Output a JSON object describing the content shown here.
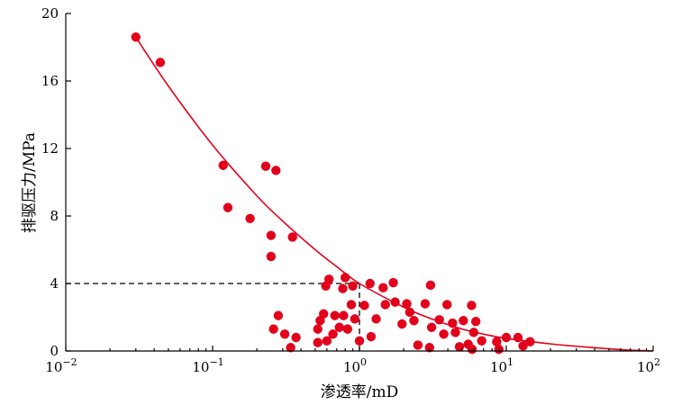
{
  "chart_data": {
    "type": "scatter",
    "xscale": "log",
    "xlim": [
      0.01,
      100
    ],
    "ylim": [
      0,
      20
    ],
    "xlabel": "渗透率/mD",
    "ylabel": "排驱压力/MPa",
    "x_tick_labels": [
      {
        "value": 0.01,
        "base": "10",
        "exp": "−2"
      },
      {
        "value": 0.1,
        "base": "10",
        "exp": "−1"
      },
      {
        "value": 1,
        "base": "10",
        "exp": "0"
      },
      {
        "value": 10,
        "base": "10",
        "exp": "1"
      },
      {
        "value": 100,
        "base": "10",
        "exp": "2"
      }
    ],
    "y_ticks": [
      0,
      4,
      8,
      12,
      16,
      20
    ],
    "y_tick_labels": [
      "0",
      "4",
      "8",
      "12",
      "16",
      "20"
    ],
    "grid": false,
    "point_color": "#e3001b",
    "line_color": "#e3001b",
    "reference_lines": {
      "x": 1,
      "y": 4,
      "style": "dashed",
      "color": "#000000"
    },
    "fit_curve": {
      "x": [
        0.03,
        0.05,
        0.1,
        0.2,
        0.3,
        0.5,
        0.7,
        1,
        2,
        3,
        5,
        7,
        10,
        20,
        30,
        50,
        70,
        100
      ],
      "y": [
        18.6,
        15.7,
        12.2,
        9.2,
        7.7,
        6.0,
        5.0,
        4.0,
        2.6,
        1.95,
        1.3,
        1.0,
        0.75,
        0.42,
        0.28,
        0.13,
        0.05,
        0.0
      ]
    },
    "points": [
      {
        "x": 0.03,
        "y": 18.6
      },
      {
        "x": 0.044,
        "y": 17.1
      },
      {
        "x": 0.118,
        "y": 11.0
      },
      {
        "x": 0.127,
        "y": 8.5
      },
      {
        "x": 0.18,
        "y": 7.85
      },
      {
        "x": 0.23,
        "y": 10.95
      },
      {
        "x": 0.27,
        "y": 10.7
      },
      {
        "x": 0.25,
        "y": 6.85
      },
      {
        "x": 0.25,
        "y": 5.6
      },
      {
        "x": 0.35,
        "y": 6.75
      },
      {
        "x": 0.26,
        "y": 1.3
      },
      {
        "x": 0.28,
        "y": 2.1
      },
      {
        "x": 0.31,
        "y": 1.0
      },
      {
        "x": 0.34,
        "y": 0.2
      },
      {
        "x": 0.37,
        "y": 0.8
      },
      {
        "x": 0.52,
        "y": 0.5
      },
      {
        "x": 0.52,
        "y": 1.3
      },
      {
        "x": 0.54,
        "y": 1.8
      },
      {
        "x": 0.57,
        "y": 2.2
      },
      {
        "x": 0.59,
        "y": 3.85
      },
      {
        "x": 0.62,
        "y": 4.25
      },
      {
        "x": 0.6,
        "y": 0.6
      },
      {
        "x": 0.66,
        "y": 1.0
      },
      {
        "x": 0.68,
        "y": 2.1
      },
      {
        "x": 0.73,
        "y": 1.4
      },
      {
        "x": 0.77,
        "y": 3.7
      },
      {
        "x": 0.78,
        "y": 2.1
      },
      {
        "x": 0.8,
        "y": 4.35
      },
      {
        "x": 0.83,
        "y": 1.3
      },
      {
        "x": 0.88,
        "y": 2.75
      },
      {
        "x": 0.9,
        "y": 3.85
      },
      {
        "x": 0.93,
        "y": 1.9
      },
      {
        "x": 1.0,
        "y": 0.6
      },
      {
        "x": 1.08,
        "y": 2.7
      },
      {
        "x": 1.18,
        "y": 4.0
      },
      {
        "x": 1.2,
        "y": 0.85
      },
      {
        "x": 1.3,
        "y": 1.9
      },
      {
        "x": 1.45,
        "y": 3.75
      },
      {
        "x": 1.5,
        "y": 2.75
      },
      {
        "x": 1.7,
        "y": 4.05
      },
      {
        "x": 1.75,
        "y": 2.9
      },
      {
        "x": 1.95,
        "y": 1.6
      },
      {
        "x": 2.1,
        "y": 2.8
      },
      {
        "x": 2.2,
        "y": 2.3
      },
      {
        "x": 2.35,
        "y": 1.8
      },
      {
        "x": 2.5,
        "y": 0.35
      },
      {
        "x": 2.8,
        "y": 2.8
      },
      {
        "x": 3.0,
        "y": 0.2
      },
      {
        "x": 3.05,
        "y": 3.9
      },
      {
        "x": 3.1,
        "y": 1.4
      },
      {
        "x": 3.5,
        "y": 1.85
      },
      {
        "x": 3.75,
        "y": 1.0
      },
      {
        "x": 3.95,
        "y": 2.75
      },
      {
        "x": 4.3,
        "y": 1.65
      },
      {
        "x": 4.5,
        "y": 1.1
      },
      {
        "x": 4.8,
        "y": 0.25
      },
      {
        "x": 5.1,
        "y": 1.8
      },
      {
        "x": 5.5,
        "y": 0.4
      },
      {
        "x": 5.8,
        "y": 2.7
      },
      {
        "x": 5.85,
        "y": 0.1
      },
      {
        "x": 6.0,
        "y": 1.1
      },
      {
        "x": 6.2,
        "y": 1.75
      },
      {
        "x": 6.8,
        "y": 0.6
      },
      {
        "x": 8.6,
        "y": 0.55
      },
      {
        "x": 8.9,
        "y": 0.1
      },
      {
        "x": 10.0,
        "y": 0.8
      },
      {
        "x": 12.0,
        "y": 0.8
      },
      {
        "x": 13.0,
        "y": 0.3
      },
      {
        "x": 14.5,
        "y": 0.55
      }
    ]
  }
}
